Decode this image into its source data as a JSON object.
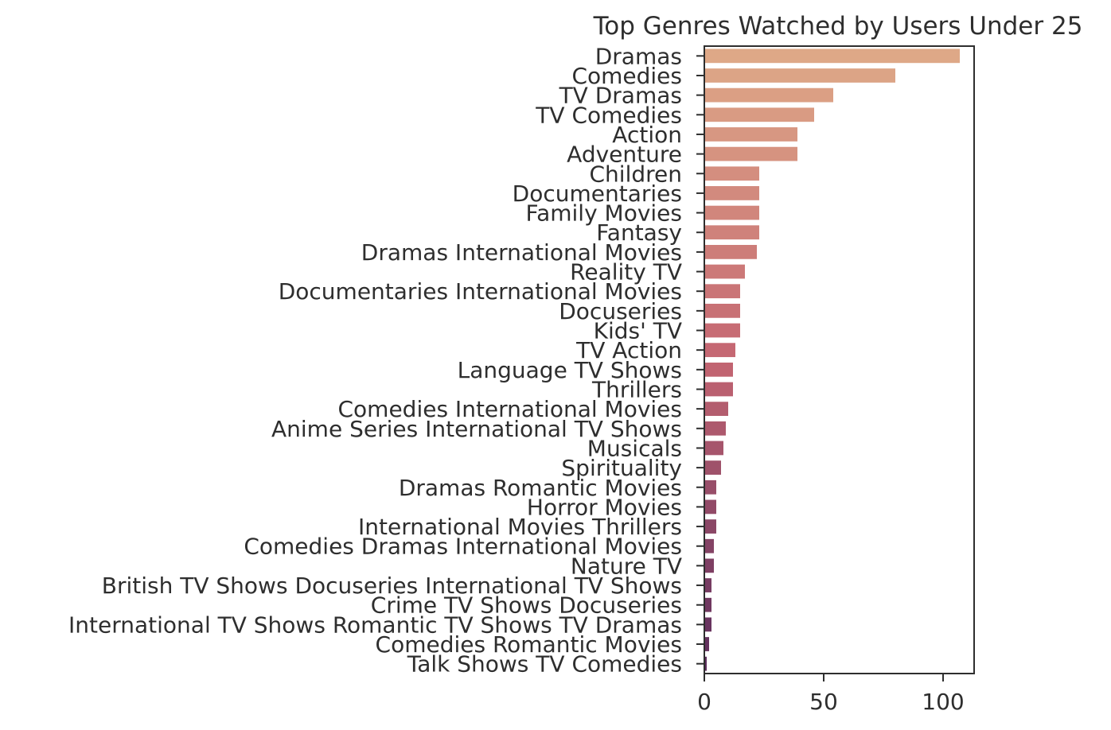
{
  "chart_data": {
    "type": "bar",
    "orientation": "horizontal",
    "title": "Top Genres Watched by Users Under 25",
    "xlabel": "",
    "ylabel": "",
    "xlim": [
      0,
      113
    ],
    "xticks": [
      0,
      50,
      100
    ],
    "grid": false,
    "categories": [
      "Dramas",
      "Comedies",
      "TV Dramas",
      "TV Comedies",
      "Action",
      "Adventure",
      "Children",
      "Documentaries",
      "Family Movies",
      "Fantasy",
      "Dramas International Movies",
      "Reality TV",
      "Documentaries International Movies",
      "Docuseries",
      "Kids' TV",
      "TV Action",
      "Language TV Shows",
      "Thrillers",
      "Comedies International Movies",
      "Anime Series International TV Shows",
      "Musicals",
      "Spirituality",
      "Dramas Romantic Movies",
      "Horror Movies",
      "International Movies Thrillers",
      "Comedies Dramas International Movies",
      "Nature TV",
      "British TV Shows Docuseries International TV Shows",
      "Crime TV Shows Docuseries",
      "International TV Shows Romantic TV Shows TV Dramas",
      "Comedies Romantic Movies",
      "Talk Shows TV Comedies"
    ],
    "values": [
      107,
      80,
      54,
      46,
      39,
      39,
      23,
      23,
      23,
      23,
      22,
      17,
      15,
      15,
      15,
      13,
      12,
      12,
      10,
      9,
      8,
      7,
      5,
      5,
      5,
      4,
      4,
      3,
      3,
      3,
      2,
      1
    ],
    "palette": {
      "start": "#dea887",
      "mid": "#c46672",
      "end": "#5c2d5c"
    },
    "axis_color": "#2e2e2e"
  }
}
